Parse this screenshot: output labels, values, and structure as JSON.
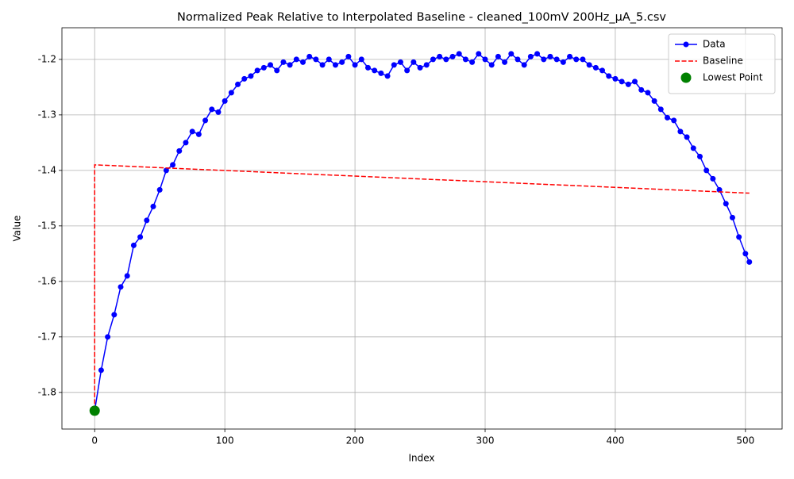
{
  "chart_data": {
    "type": "line",
    "title": "Normalized Peak Relative to Interpolated Baseline - cleaned_100mV 200Hz_µA_5.csv",
    "xlabel": "Index",
    "ylabel": "Value",
    "xlim": [
      -25.15,
      528.15
    ],
    "ylim": [
      -1.866,
      -1.143
    ],
    "xticks": [
      0,
      100,
      200,
      300,
      400,
      500
    ],
    "yticks": [
      -1.8,
      -1.7,
      -1.6,
      -1.5,
      -1.4,
      -1.3,
      -1.2
    ],
    "grid": true,
    "legend": "upper right",
    "series": [
      {
        "name": "Data",
        "color": "#0000ff",
        "linestyle": "solid",
        "marker": "circle",
        "x": [
          0,
          5,
          10,
          15,
          20,
          25,
          30,
          35,
          40,
          45,
          50,
          55,
          60,
          65,
          70,
          75,
          80,
          85,
          90,
          95,
          100,
          105,
          110,
          115,
          120,
          125,
          130,
          135,
          140,
          145,
          150,
          155,
          160,
          165,
          170,
          175,
          180,
          185,
          190,
          195,
          200,
          205,
          210,
          215,
          220,
          225,
          230,
          235,
          240,
          245,
          250,
          255,
          260,
          265,
          270,
          275,
          280,
          285,
          290,
          295,
          300,
          305,
          310,
          315,
          320,
          325,
          330,
          335,
          340,
          345,
          350,
          355,
          360,
          365,
          370,
          375,
          380,
          385,
          390,
          395,
          400,
          405,
          410,
          415,
          420,
          425,
          430,
          435,
          440,
          445,
          450,
          455,
          460,
          465,
          470,
          475,
          480,
          485,
          490,
          495,
          500,
          503
        ],
        "values": [
          -1.833,
          -1.76,
          -1.7,
          -1.66,
          -1.61,
          -1.59,
          -1.535,
          -1.52,
          -1.49,
          -1.465,
          -1.435,
          -1.4,
          -1.39,
          -1.365,
          -1.35,
          -1.33,
          -1.335,
          -1.31,
          -1.29,
          -1.295,
          -1.275,
          -1.26,
          -1.245,
          -1.235,
          -1.23,
          -1.22,
          -1.215,
          -1.21,
          -1.22,
          -1.205,
          -1.21,
          -1.2,
          -1.205,
          -1.195,
          -1.2,
          -1.21,
          -1.2,
          -1.21,
          -1.205,
          -1.195,
          -1.21,
          -1.2,
          -1.215,
          -1.22,
          -1.225,
          -1.23,
          -1.21,
          -1.205,
          -1.22,
          -1.205,
          -1.215,
          -1.21,
          -1.2,
          -1.195,
          -1.2,
          -1.195,
          -1.19,
          -1.2,
          -1.205,
          -1.19,
          -1.2,
          -1.21,
          -1.195,
          -1.205,
          -1.19,
          -1.2,
          -1.21,
          -1.195,
          -1.19,
          -1.2,
          -1.195,
          -1.2,
          -1.205,
          -1.195,
          -1.2,
          -1.2,
          -1.21,
          -1.215,
          -1.22,
          -1.23,
          -1.235,
          -1.24,
          -1.245,
          -1.24,
          -1.255,
          -1.26,
          -1.275,
          -1.29,
          -1.305,
          -1.31,
          -1.33,
          -1.34,
          -1.36,
          -1.375,
          -1.4,
          -1.415,
          -1.435,
          -1.46,
          -1.485,
          -1.52,
          -1.55,
          -1.565
        ]
      },
      {
        "name": "Baseline",
        "color": "#ff0000",
        "linestyle": "dashed",
        "marker": "none",
        "x": [
          0,
          0,
          503
        ],
        "values": [
          -1.833,
          -1.39,
          -1.441
        ]
      },
      {
        "name": "Lowest Point",
        "color": "#008000",
        "linestyle": "none",
        "marker": "big-circle",
        "x": [
          0
        ],
        "values": [
          -1.833
        ]
      }
    ]
  }
}
